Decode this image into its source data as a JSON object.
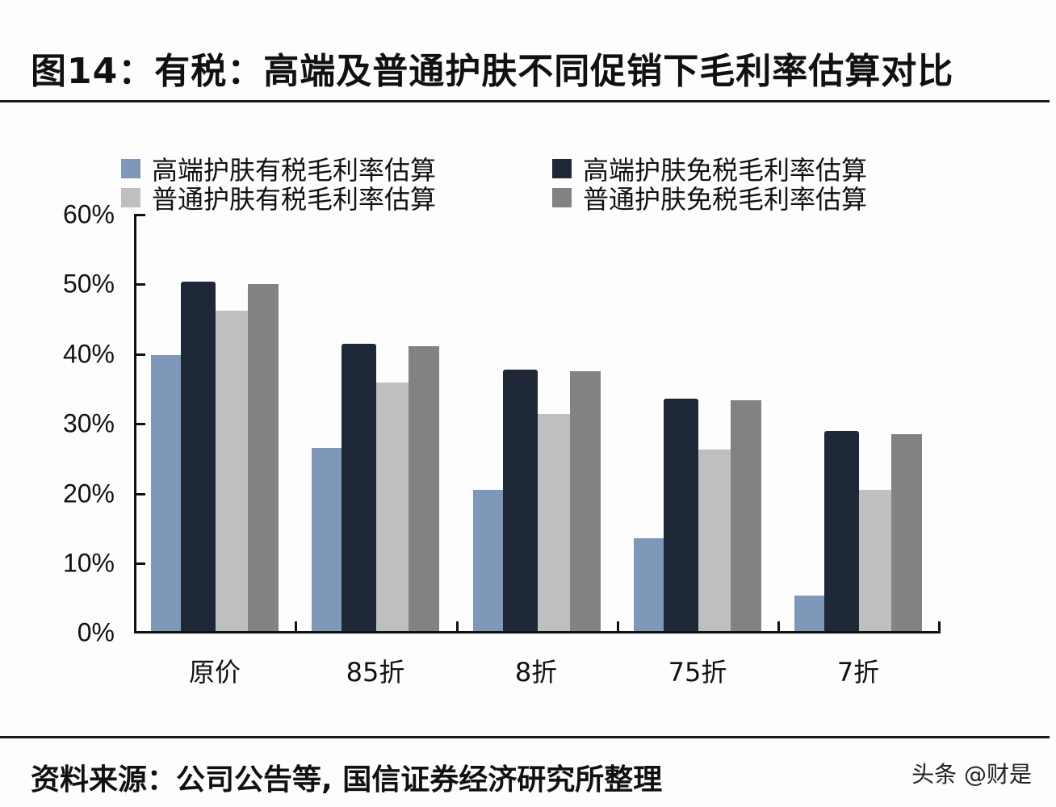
{
  "header": {
    "title": "图14：有税：高端及普通护肤不同促销下毛利率估算对比"
  },
  "footer": {
    "source": "资料来源：公司公告等, 国信证券经济研究所整理",
    "watermark": "头条 @财是"
  },
  "legend": [
    {
      "label": "高端护肤有税毛利率估算",
      "color": "#7f97b8"
    },
    {
      "label": "高端护肤免税毛利率估算",
      "color": "#1f2836"
    },
    {
      "label": "普通护肤有税毛利率估算",
      "color": "#bfbfc1"
    },
    {
      "label": "普通护肤免税毛利率估算",
      "color": "#828284"
    }
  ],
  "axis": {
    "y_ticks": [
      "60%",
      "50%",
      "40%",
      "30%",
      "20%",
      "10%",
      "0%"
    ],
    "x_labels": [
      "原价",
      "85折",
      "8折",
      "75折",
      "7折"
    ]
  },
  "chart_data": {
    "type": "bar",
    "title": "图14：有税：高端及普通护肤不同促销下毛利率估算对比",
    "xlabel": "",
    "ylabel": "",
    "ylim": [
      0,
      60
    ],
    "y_unit": "%",
    "grid": false,
    "legend_position": "top",
    "categories": [
      "原价",
      "85折",
      "8折",
      "75折",
      "7折"
    ],
    "series": [
      {
        "name": "高端护肤有税毛利率估算",
        "color": "#7f97b8",
        "values": [
          39.8,
          26.5,
          20.5,
          13.6,
          5.3
        ]
      },
      {
        "name": "高端护肤免税毛利率估算",
        "color": "#1f2836",
        "values": [
          50.4,
          41.5,
          37.8,
          33.6,
          28.9
        ]
      },
      {
        "name": "普通护肤有税毛利率估算",
        "color": "#bfbfc1",
        "values": [
          46.2,
          35.9,
          31.4,
          26.3,
          20.5
        ]
      },
      {
        "name": "普通护肤免税毛利率估算",
        "color": "#828284",
        "values": [
          50.0,
          41.1,
          37.5,
          33.4,
          28.5
        ]
      }
    ]
  }
}
